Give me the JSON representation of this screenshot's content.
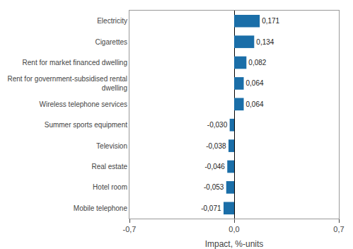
{
  "chart_data": {
    "type": "bar",
    "orientation": "horizontal",
    "categories": [
      "Mobile telephone",
      "Hotel room",
      "Real estate",
      "Television",
      "Summer sports equipment",
      "Wireless telephone services",
      "Rent for government-subsidised rental\ndwelling",
      "Rent for market financed dwelling",
      "Cigarettes",
      "Electricity"
    ],
    "values": [
      -0.071,
      -0.053,
      -0.046,
      -0.038,
      -0.03,
      0.064,
      0.064,
      0.082,
      0.134,
      0.171
    ],
    "value_labels": [
      "-0,071",
      "-0,053",
      "-0,046",
      "-0,038",
      "-0,030",
      "0,064",
      "0,064",
      "0,082",
      "0,134",
      "0,171"
    ],
    "data_labels": true,
    "color": "#1a6ea8",
    "xlabel": "Impact, %-units",
    "xlim": [
      -0.7,
      0.7
    ],
    "xticks": [
      {
        "value": -0.7,
        "label": "-0,7"
      },
      {
        "value": 0.0,
        "label": "0,0"
      },
      {
        "value": 0.7,
        "label": "0,7"
      }
    ],
    "grid": true
  }
}
